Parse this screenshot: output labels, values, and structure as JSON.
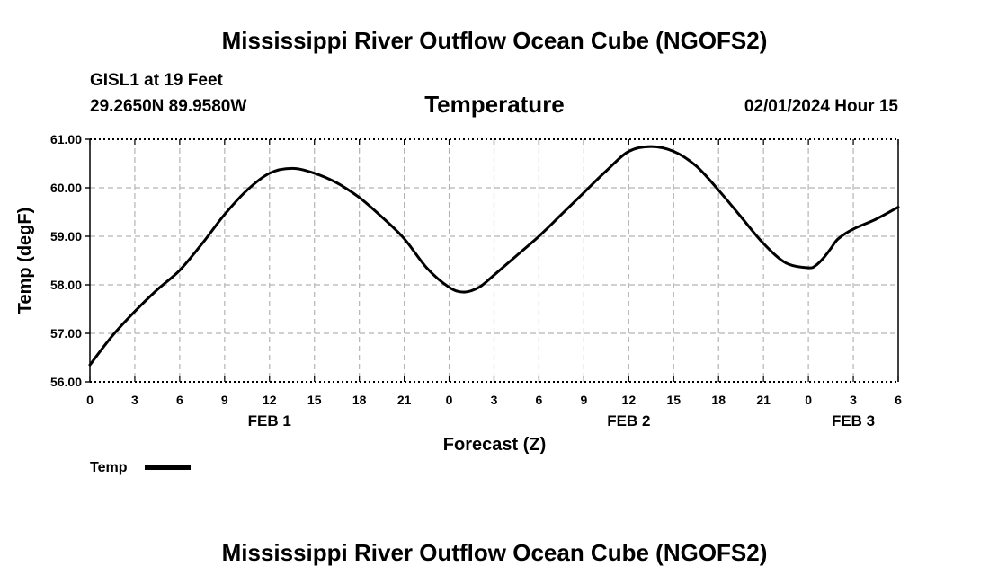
{
  "header": {
    "title": "Mississippi River Outflow Ocean Cube (NGOFS2)",
    "station": "GISL1 at 19 Feet",
    "coords": "29.2650N  89.9580W",
    "datetime": "02/01/2024 Hour 15"
  },
  "footer": {
    "title": "Mississippi River Outflow Ocean Cube (NGOFS2)"
  },
  "chart_data": {
    "type": "line",
    "title": "Temperature",
    "xlabel": "Forecast (Z)",
    "ylabel": "Temp (degF)",
    "xlim": [
      0,
      54
    ],
    "ylim": [
      56.0,
      61.0
    ],
    "y_ticks": [
      "56.00",
      "57.00",
      "58.00",
      "59.00",
      "60.00",
      "61.00"
    ],
    "x_ticks": [
      "0",
      "3",
      "6",
      "9",
      "12",
      "15",
      "18",
      "21",
      "0",
      "3",
      "6",
      "9",
      "12",
      "15",
      "18",
      "21",
      "0",
      "3",
      "6"
    ],
    "date_labels": [
      {
        "label": "FEB 1",
        "at": 12
      },
      {
        "label": "FEB 2",
        "at": 36
      },
      {
        "label": "FEB 3",
        "at": 51
      }
    ],
    "grid": true,
    "legend_position": "bottom-left",
    "series": [
      {
        "name": "Temp",
        "color": "#000000",
        "x": [
          0,
          1.5,
          3,
          4.5,
          6,
          7.5,
          9,
          10.5,
          12,
          13.5,
          15,
          16.5,
          18,
          19.5,
          21,
          22.5,
          24,
          25,
          26,
          27,
          28.5,
          30,
          31.5,
          33,
          34.5,
          36,
          37.5,
          39,
          40.5,
          42,
          43.5,
          45,
          46.5,
          48,
          48.5,
          49,
          49.5,
          50,
          51,
          52.5,
          54
        ],
        "values": [
          56.35,
          56.95,
          57.45,
          57.9,
          58.3,
          58.85,
          59.45,
          59.95,
          60.3,
          60.4,
          60.3,
          60.1,
          59.8,
          59.4,
          58.95,
          58.35,
          57.95,
          57.85,
          57.95,
          58.2,
          58.6,
          59.0,
          59.45,
          59.9,
          60.35,
          60.75,
          60.85,
          60.75,
          60.45,
          59.95,
          59.4,
          58.85,
          58.45,
          58.35,
          58.4,
          58.55,
          58.75,
          58.95,
          59.15,
          59.35,
          59.6
        ]
      }
    ]
  }
}
